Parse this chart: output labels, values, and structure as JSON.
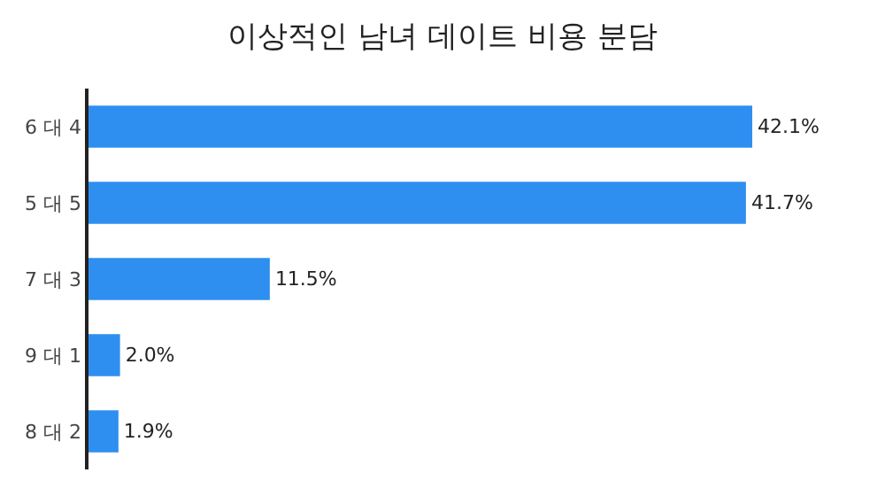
{
  "chart_data": {
    "type": "bar",
    "orientation": "horizontal",
    "title": "이상적인 남녀 데이트 비용 분담",
    "categories": [
      "6 대 4",
      "5 대 5",
      "7 대 3",
      "9 대 1",
      "8 대 2"
    ],
    "values": [
      42.1,
      41.7,
      11.5,
      2.0,
      1.9
    ],
    "value_labels": [
      "42.1%",
      "41.7%",
      "11.5%",
      "2.0%",
      "1.9%"
    ],
    "color": "#2f8ff0",
    "grid": false,
    "legend": false
  }
}
